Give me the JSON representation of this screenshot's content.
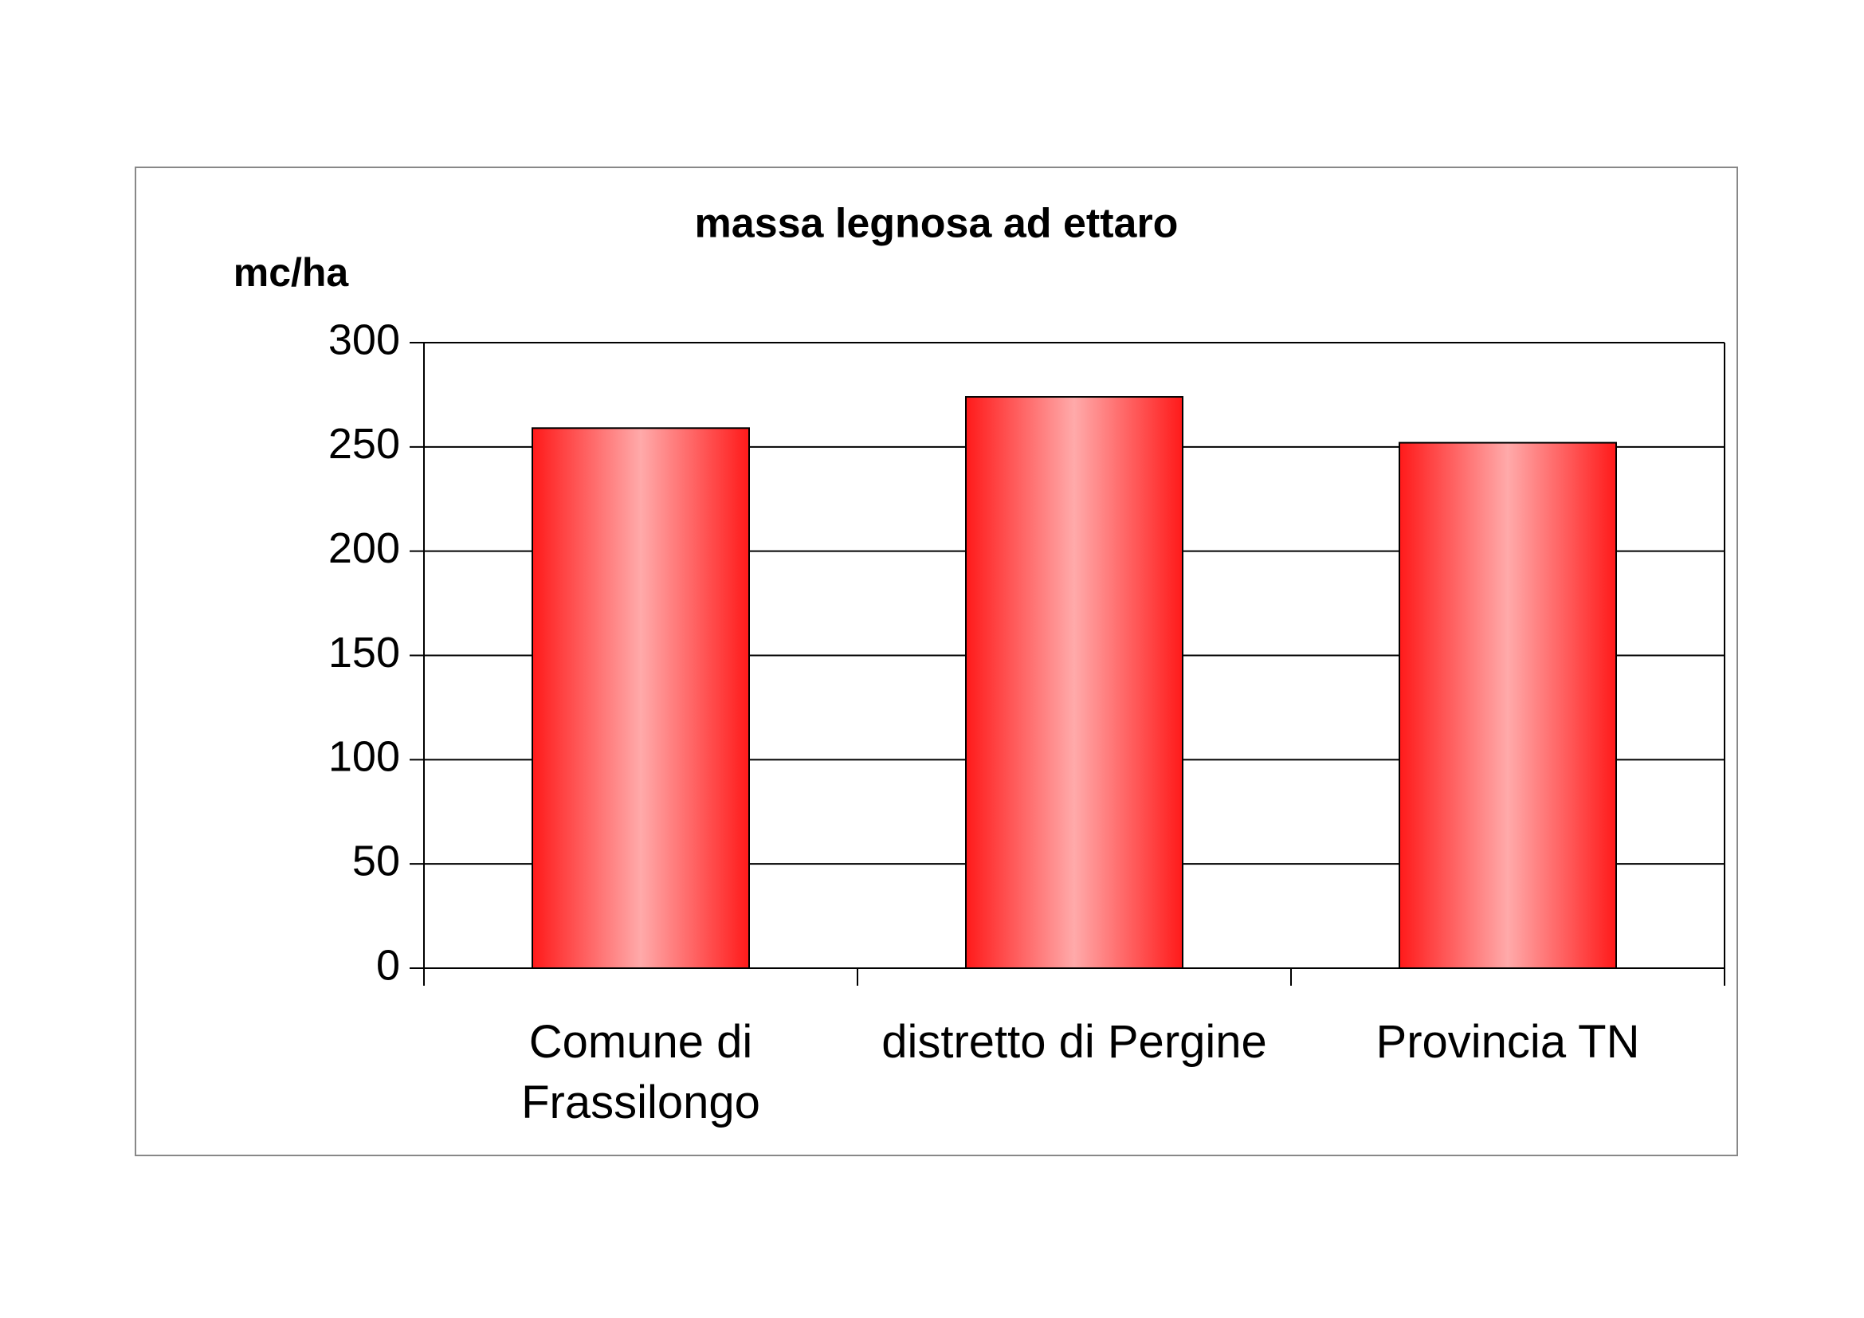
{
  "chart_data": {
    "type": "bar",
    "title": "massa legnosa ad ettaro",
    "y_label": "mc/ha",
    "categories": [
      "Comune di Frassilongo",
      "distretto di Pergine",
      "Provincia TN"
    ],
    "values": [
      259,
      274,
      252
    ],
    "color": "#ff1a1a",
    "ylim": [
      0,
      300
    ],
    "yticks": [
      0,
      50,
      100,
      150,
      200,
      250,
      300
    ],
    "grid": true
  }
}
